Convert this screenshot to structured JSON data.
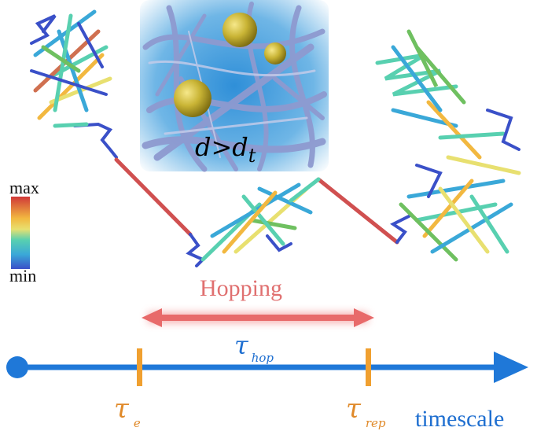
{
  "inset": {
    "condition_main": "d>d",
    "condition_sub": "t"
  },
  "colorbar": {
    "max_label": "max",
    "min_label": "min",
    "colors": [
      "#d03838",
      "#f2b840",
      "#e8e070",
      "#58d0b0",
      "#3aa8d8",
      "#3a50c8"
    ]
  },
  "hopping": {
    "label": "Hopping",
    "tau_symbol": "τ",
    "tau_sub": "hop",
    "color": "#e86a6a"
  },
  "timeline": {
    "label": "timescale",
    "axis_color": "#1f78d8",
    "tick_color": "#f0a030",
    "tau_e_symbol": "τ",
    "tau_e_sub": "e",
    "tau_rep_symbol": "τ",
    "tau_rep_sub": "rep"
  },
  "trajectory": {
    "jump_color": "#d05050"
  }
}
